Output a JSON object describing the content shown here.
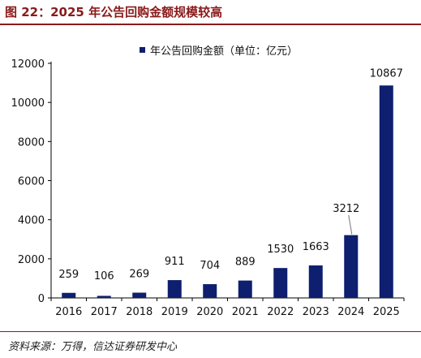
{
  "header": {
    "title": "图 22：2025 年公告回购金额规模较高"
  },
  "footer": {
    "source": "资料来源：万得，信达证券研发中心"
  },
  "colors": {
    "title": "#8b1a1a",
    "bar": "#0d1f6e"
  },
  "chart_data": {
    "type": "bar",
    "title": "",
    "xlabel": "",
    "ylabel": "",
    "categories": [
      "2016",
      "2017",
      "2018",
      "2019",
      "2020",
      "2021",
      "2022",
      "2023",
      "2024",
      "2025"
    ],
    "series": [
      {
        "name": "年公告回购金额（单位：亿元）",
        "values": [
          259,
          106,
          269,
          911,
          704,
          889,
          1530,
          1663,
          3212,
          10867
        ]
      }
    ],
    "data_labels": [
      "259",
      "106",
      "269",
      "911",
      "704",
      "889",
      "1530",
      "1663",
      "3212",
      "10867"
    ],
    "ylim": [
      0,
      12000
    ],
    "yticks": [
      "0",
      "2000",
      "4000",
      "6000",
      "8000",
      "10000",
      "12000"
    ],
    "grid": false,
    "legend": "top-center"
  }
}
